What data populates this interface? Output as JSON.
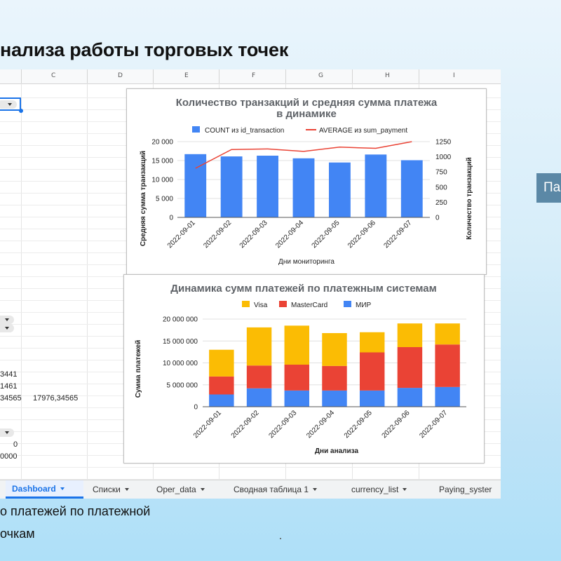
{
  "slide": {
    "title": "нализа работы торговых точек",
    "bottom_line1": "о платежей по платежной",
    "bottom_line2": "очкам",
    "side_button": "Па"
  },
  "sheet": {
    "columns": [
      "C",
      "D",
      "E",
      "F",
      "G",
      "H",
      "I"
    ],
    "cells": [
      "3441",
      "1461",
      "34565",
      "17976,34565",
      "0",
      "0000"
    ],
    "tabs": [
      "Dashboard",
      "Списки",
      "Oper_data",
      "Сводная таблица 1",
      "currency_list",
      "Paying_syster"
    ],
    "active_tab": "Dashboard"
  },
  "colors": {
    "blue": "#4285f4",
    "red": "#ea4335",
    "yellow": "#fbbc04",
    "accent": "#1a73e8"
  },
  "chart_data": [
    {
      "type": "bar",
      "title_line1": "Количество транзакций и средняя сумма платежа",
      "title_line2": "в динамике",
      "xlabel": "Дни мониторинга",
      "ylabel_left": "Средняя сумма транзакций",
      "ylabel_right": "Количество транзакций",
      "categories": [
        "2022-09-01",
        "2022-09-02",
        "2022-09-03",
        "2022-09-04",
        "2022-09-05",
        "2022-09-06",
        "2022-09-07"
      ],
      "ylim_left": [
        0,
        20000
      ],
      "yticks_left": [
        "0",
        "5 000",
        "10 000",
        "15 000",
        "20 000"
      ],
      "ylim_right": [
        0,
        1250
      ],
      "yticks_right": [
        "0",
        "250",
        "500",
        "750",
        "1000",
        "1250"
      ],
      "series": [
        {
          "name": "COUNT из id_transaction",
          "kind": "bar",
          "axis": "left",
          "values": [
            16700,
            16100,
            16300,
            15600,
            14500,
            16600,
            15100
          ]
        },
        {
          "name": "AVERAGE из sum_payment",
          "kind": "line",
          "axis": "right",
          "values": [
            810,
            1120,
            1130,
            1090,
            1160,
            1140,
            1250
          ]
        }
      ]
    },
    {
      "type": "stacked-bar",
      "title": "Динамика сумм платежей по платежным системам",
      "xlabel": "Дни анализа",
      "ylabel": "Сумма платежей",
      "categories": [
        "2022-09-01",
        "2022-09-02",
        "2022-09-03",
        "2022-09-04",
        "2022-09-05",
        "2022-09-06",
        "2022-09-07"
      ],
      "ylim": [
        0,
        20000000
      ],
      "yticks": [
        "0",
        "5 000 000",
        "10 000 000",
        "15 000 000",
        "20 000 000"
      ],
      "legend": [
        "Visa",
        "MasterCard",
        "МИР"
      ],
      "series": [
        {
          "name": "МИР",
          "values": [
            2800000,
            4200000,
            3700000,
            3700000,
            3700000,
            4300000,
            4500000
          ]
        },
        {
          "name": "MasterCard",
          "values": [
            4100000,
            5200000,
            5900000,
            5600000,
            8700000,
            9300000,
            9700000
          ]
        },
        {
          "name": "Visa",
          "values": [
            6100000,
            8700000,
            8900000,
            7500000,
            4600000,
            5400000,
            4800000
          ]
        }
      ]
    }
  ]
}
